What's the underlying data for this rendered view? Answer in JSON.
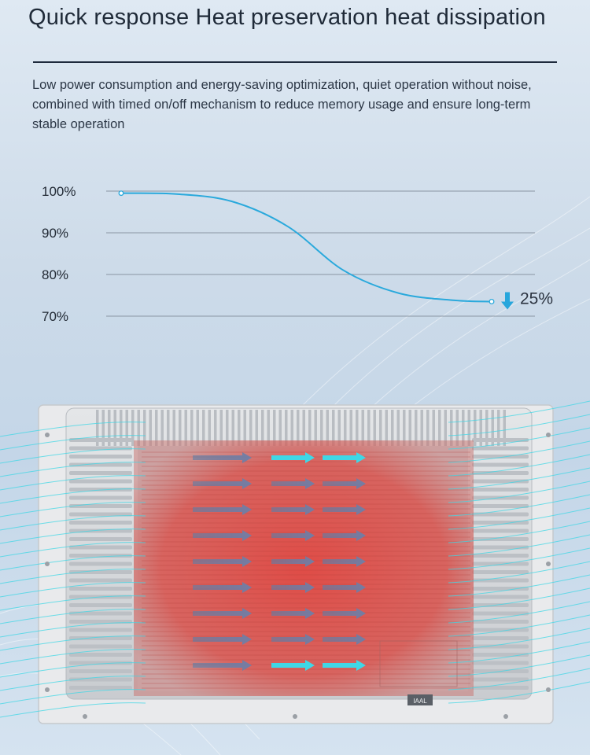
{
  "header": {
    "title": "Quick response Heat preservation heat dissipation",
    "description": "Low power consumption and energy-saving optimization, quiet operation without noise, combined with timed on/off mechanism to reduce memory usage and ensure long-term stable operation"
  },
  "chart_data": {
    "type": "line",
    "title": "",
    "xlabel": "",
    "ylabel": "",
    "y_tick_labels": [
      "100%",
      "90%",
      "80%",
      "70%"
    ],
    "y_ticks": [
      100,
      90,
      80,
      70
    ],
    "ylim": [
      70,
      100
    ],
    "grid": true,
    "legend": "none",
    "series": [
      {
        "x": [
          0,
          0.15,
          0.3,
          0.45,
          0.6,
          0.75,
          0.9,
          1
        ],
        "values": [
          99.5,
          99.3,
          97.5,
          91.5,
          81,
          75.5,
          73.8,
          73.5
        ]
      }
    ],
    "annotation": {
      "label": "25%",
      "marker": "down-arrow"
    },
    "colors": {
      "line": "#2aa9dc",
      "grid": "#8a96a3",
      "arrow": "#27a6dc",
      "label": "#2b3340"
    }
  },
  "device": {
    "badge_text": "IAAL",
    "colors": {
      "heat": "#e04a43",
      "airflow": "#3fd7e6",
      "chassis": "#d8dadc"
    }
  }
}
